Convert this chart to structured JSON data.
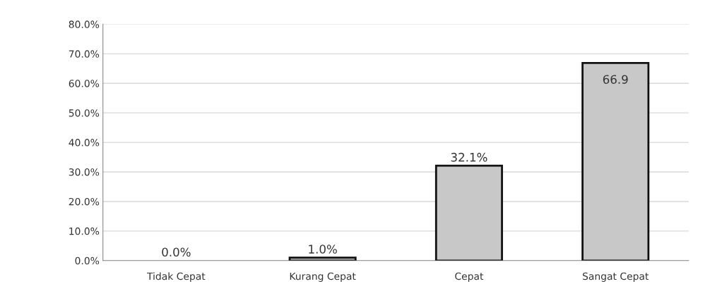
{
  "chart_data": {
    "type": "bar",
    "categories": [
      "Tidak Cepat",
      "Kurang Cepat",
      "Cepat",
      "Sangat Cepat"
    ],
    "values": [
      0.0,
      1.0,
      32.1,
      66.9
    ],
    "value_labels": [
      "0.0%",
      "1.0%",
      "32.1%",
      "66.9"
    ],
    "color": "#c8c8c8",
    "ylim": [
      0,
      80
    ],
    "yticks": [
      {
        "value": 0,
        "label": "0.0%"
      },
      {
        "value": 10,
        "label": "10.0%"
      },
      {
        "value": 20,
        "label": "20.0%"
      },
      {
        "value": 30,
        "label": "30.0%"
      },
      {
        "value": 40,
        "label": "40.0%"
      },
      {
        "value": 50,
        "label": "50.0%"
      },
      {
        "value": 60,
        "label": "60.0%"
      },
      {
        "value": 70,
        "label": "70.0%"
      },
      {
        "value": 80,
        "label": "80.0%"
      }
    ],
    "grid": "y"
  }
}
